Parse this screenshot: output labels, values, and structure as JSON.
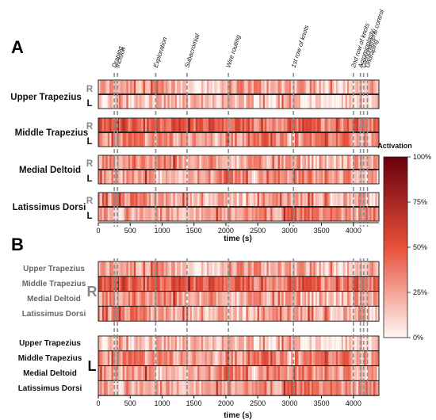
{
  "panels": {
    "a_label": "A",
    "b_label": "B",
    "b_side_label": "R",
    "b_side_label_left": "L"
  },
  "colorbar": {
    "title": "Activation",
    "ticks": [
      "100%",
      "75%",
      "50%",
      "25%",
      "0%"
    ],
    "low_color": "#fff7f4",
    "mid_color": "#e8503a",
    "high_color": "#67000d"
  },
  "chart_data": {
    "type": "heatmap",
    "xlabel": "time (s)",
    "xlim": [
      0,
      4400
    ],
    "xticks": [
      "0",
      "500",
      "1000",
      "1500",
      "2000",
      "2500",
      "3000",
      "3500",
      "4000"
    ],
    "xtick_values": [
      0,
      500,
      1000,
      1500,
      2000,
      2500,
      3000,
      3500,
      4000
    ],
    "value_range": [
      "0%",
      "100%"
    ],
    "phases": [
      {
        "name": "Draping",
        "t": 250
      },
      {
        "name": "Incision",
        "t": 300
      },
      {
        "name": "Exploration",
        "t": 900
      },
      {
        "name": "Subacromial",
        "t": 1390
      },
      {
        "name": "Wire routing",
        "t": 2040
      },
      {
        "name": "1st row of knots",
        "t": 3060
      },
      {
        "name": "2nd row of knots",
        "t": 4000
      },
      {
        "name": "Acromioplasty",
        "t": 4110
      },
      {
        "name": "Glenohumeral control",
        "t": 4160
      },
      {
        "name": "Undraping",
        "t": 4220
      }
    ],
    "muscles": [
      "Upper Trapezius",
      "Middle Trapezius",
      "Medial Deltoid",
      "Latissimus Dorsi"
    ],
    "sides": [
      "R",
      "L"
    ],
    "mean_activation": {
      "Upper Trapezius": {
        "R": 0.18,
        "L": 0.14
      },
      "Middle Trapezius": {
        "R": 0.42,
        "L": 0.3
      },
      "Medial Deltoid": {
        "R": 0.24,
        "L": 0.2
      },
      "Latissimus Dorsi": {
        "R": 0.2,
        "L": 0.28
      }
    }
  }
}
